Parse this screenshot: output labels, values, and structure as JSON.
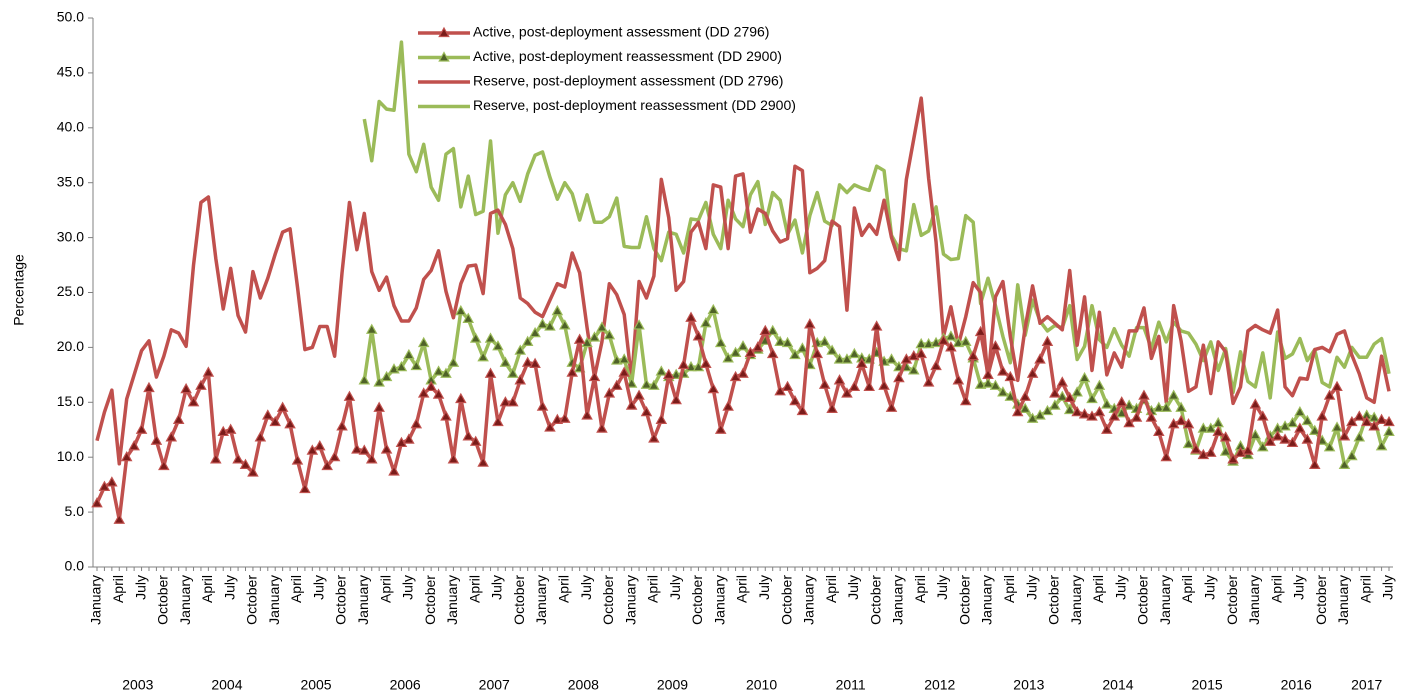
{
  "chart_data": {
    "type": "line",
    "y_label": "Percentage",
    "ylim": [
      0,
      50
    ],
    "yticks": [
      {
        "value": 0,
        "label": "0.0"
      },
      {
        "value": 5,
        "label": "5.0"
      },
      {
        "value": 10,
        "label": "10.0"
      },
      {
        "value": 15,
        "label": "15.0"
      },
      {
        "value": 20,
        "label": "20.0"
      },
      {
        "value": 25,
        "label": "25.0"
      },
      {
        "value": 30,
        "label": "30.0"
      },
      {
        "value": 35,
        "label": "35.0"
      },
      {
        "value": 40,
        "label": "40.0"
      },
      {
        "value": 45,
        "label": "45.0"
      },
      {
        "value": 50,
        "label": "50.0"
      }
    ],
    "grid": false,
    "legend": "top",
    "years": [
      "2003",
      "2004",
      "2005",
      "2006",
      "2007",
      "2008",
      "2009",
      "2010",
      "2011",
      "2012",
      "2013",
      "2014",
      "2015",
      "2016",
      "2017"
    ],
    "categories": [
      "January",
      null,
      null,
      "April",
      null,
      null,
      "July",
      null,
      null,
      "October",
      null,
      null,
      "January",
      null,
      null,
      "April",
      null,
      null,
      "July",
      null,
      null,
      "October",
      null,
      null,
      "January",
      null,
      null,
      "April",
      null,
      null,
      "July",
      null,
      null,
      "October",
      null,
      null,
      "January",
      null,
      null,
      "April",
      null,
      null,
      "July",
      null,
      null,
      "October",
      null,
      null,
      "January",
      null,
      null,
      "April",
      null,
      null,
      "July",
      null,
      null,
      "October",
      null,
      null,
      "January",
      null,
      null,
      "April",
      null,
      null,
      "July",
      null,
      null,
      "October",
      null,
      null,
      "January",
      null,
      null,
      "April",
      null,
      null,
      "July",
      null,
      null,
      "October",
      null,
      null,
      "January",
      null,
      null,
      "April",
      null,
      null,
      "July",
      null,
      null,
      "October",
      null,
      null,
      "January",
      null,
      null,
      "April",
      null,
      null,
      "July",
      null,
      null,
      "October",
      null,
      null,
      "January",
      null,
      null,
      "April",
      null,
      null,
      "July",
      null,
      null,
      "October",
      null,
      null,
      "January",
      null,
      null,
      "April",
      null,
      null,
      "July",
      null,
      null,
      "October",
      null,
      null,
      "January",
      null,
      null,
      "April",
      null,
      null,
      "July",
      null,
      null,
      "October",
      null,
      null,
      "January",
      null,
      null,
      "April",
      null,
      null,
      "July",
      null,
      null,
      "October",
      null,
      null,
      "January",
      null,
      null,
      "April",
      null,
      null,
      "July",
      null,
      null,
      "October",
      null,
      null,
      "January",
      null,
      null,
      "April",
      null,
      null,
      "July"
    ],
    "series": [
      {
        "name": "Active, post-deployment assessment (DD 2796)",
        "color": "#c0504d",
        "marker": "triangle",
        "marker_color": "#7a1c1a",
        "values": [
          5.8,
          7.3,
          7.7,
          4.3,
          10.0,
          11.0,
          12.5,
          16.3,
          11.5,
          9.2,
          11.8,
          13.4,
          16.2,
          15.0,
          16.5,
          17.7,
          9.8,
          12.3,
          12.5,
          9.8,
          9.3,
          8.6,
          11.8,
          13.8,
          13.2,
          14.5,
          13.0,
          9.7,
          7.1,
          10.6,
          11.0,
          9.2,
          10.0,
          12.8,
          15.5,
          10.7,
          10.6,
          9.8,
          14.5,
          10.7,
          8.7,
          11.3,
          11.6,
          13.0,
          15.8,
          16.4,
          15.7,
          13.7,
          9.8,
          15.3,
          11.9,
          11.4,
          9.5,
          17.6,
          13.2,
          15.0,
          15.0,
          17.0,
          18.6,
          18.5,
          14.6,
          12.7,
          13.4,
          13.5,
          17.7,
          20.7,
          13.8,
          17.3,
          12.6,
          15.8,
          16.5,
          17.7,
          14.7,
          15.6,
          14.1,
          11.7,
          13.4,
          17.5,
          15.2,
          18.4,
          22.7,
          21.0,
          18.5,
          16.2,
          12.5,
          14.6,
          17.3,
          17.6,
          19.5,
          20.0,
          21.5,
          19.4,
          16.0,
          16.4,
          15.1,
          14.2,
          22.1,
          19.4,
          16.6,
          14.4,
          17.0,
          15.8,
          16.4,
          18.5,
          16.4,
          21.9,
          16.5,
          14.5,
          17.2,
          18.9,
          19.2,
          19.4,
          16.8,
          18.3,
          20.6,
          20.0,
          17.0,
          15.1,
          19.2,
          21.4,
          17.5,
          20.1,
          17.8,
          17.3,
          14.1,
          15.5,
          17.6,
          18.9,
          20.5,
          15.8,
          16.8,
          15.4,
          14.1,
          13.9,
          13.7,
          14.1,
          12.5,
          13.7,
          15.0,
          13.1,
          13.6,
          15.6,
          13.6,
          12.3,
          10.0,
          13.0,
          13.3,
          13.0,
          10.7,
          10.2,
          10.4,
          12.3,
          11.8,
          9.8,
          10.4,
          10.6,
          14.8,
          13.7,
          11.4,
          11.9,
          11.6,
          11.3,
          12.6,
          11.6,
          9.3,
          13.7,
          15.6,
          16.4,
          11.9,
          13.2,
          13.7,
          13.2,
          12.8,
          13.4,
          13.2
        ]
      },
      {
        "name": "Active, post-deployment reassessment (DD 2900)",
        "color": "#9bbb59",
        "marker": "triangle",
        "marker_color": "#4f6228",
        "values": [
          null,
          null,
          null,
          null,
          null,
          null,
          null,
          null,
          null,
          null,
          null,
          null,
          null,
          null,
          null,
          null,
          null,
          null,
          null,
          null,
          null,
          null,
          null,
          null,
          null,
          null,
          null,
          null,
          null,
          null,
          null,
          null,
          null,
          null,
          null,
          null,
          17.0,
          21.6,
          16.8,
          17.3,
          18.0,
          18.2,
          19.3,
          18.3,
          20.4,
          17.0,
          17.8,
          17.6,
          18.6,
          23.3,
          22.6,
          20.8,
          19.1,
          20.8,
          20.1,
          18.6,
          17.6,
          19.7,
          20.5,
          21.3,
          22.1,
          21.9,
          23.3,
          22.0,
          18.6,
          18.1,
          20.4,
          20.9,
          21.8,
          21.1,
          18.8,
          18.9,
          16.7,
          22.0,
          16.6,
          16.5,
          17.8,
          17.3,
          17.5,
          17.6,
          18.2,
          18.2,
          22.2,
          23.4,
          20.4,
          19.0,
          19.5,
          20.1,
          19.3,
          19.8,
          20.6,
          21.5,
          20.5,
          20.4,
          19.3,
          19.9,
          18.4,
          20.4,
          20.5,
          19.7,
          18.9,
          18.9,
          19.4,
          19.0,
          18.9,
          19.5,
          18.7,
          18.9,
          18.2,
          18.2,
          17.9,
          20.3,
          20.3,
          20.4,
          20.8,
          21.0,
          20.4,
          20.5,
          19.0,
          16.6,
          16.7,
          16.5,
          15.9,
          15.5,
          14.8,
          14.4,
          13.5,
          13.8,
          14.2,
          14.7,
          15.5,
          14.3,
          15.9,
          17.2,
          15.3,
          16.5,
          14.8,
          14.4,
          14.0,
          14.7,
          14.4,
          15.2,
          14.2,
          14.5,
          14.5,
          15.6,
          14.5,
          11.2,
          10.6,
          12.6,
          12.6,
          13.1,
          10.5,
          9.6,
          11.0,
          10.2,
          12.0,
          10.9,
          11.9,
          12.6,
          12.8,
          13.1,
          14.1,
          13.3,
          12.4,
          11.5,
          10.9,
          12.7,
          9.3,
          10.1,
          11.8,
          13.8,
          13.6,
          11.0,
          12.3
        ]
      },
      {
        "name": "Reserve, post-deployment assessment (DD 2796)",
        "color": "#c0504d",
        "values": [
          11.5,
          14.1,
          16.1,
          9.4,
          15.3,
          17.5,
          19.7,
          20.6,
          17.3,
          19.2,
          21.6,
          21.3,
          20.1,
          27.5,
          33.2,
          33.7,
          28.1,
          23.5,
          27.2,
          22.9,
          21.4,
          26.9,
          24.5,
          26.3,
          28.5,
          30.5,
          30.8,
          25.5,
          19.8,
          20.0,
          21.9,
          21.9,
          19.2,
          26.8,
          33.2,
          28.9,
          32.2,
          26.9,
          25.2,
          26.4,
          23.8,
          22.4,
          22.4,
          23.6,
          26.2,
          27.0,
          28.8,
          25.1,
          22.7,
          25.8,
          27.4,
          27.5,
          24.9,
          32.2,
          32.5,
          31.2,
          29.0,
          24.5,
          24.0,
          23.2,
          22.8,
          24.3,
          25.8,
          25.5,
          28.6,
          26.8,
          21.8,
          17.3,
          20.5,
          25.8,
          24.8,
          23.0,
          17.0,
          26.0,
          24.5,
          26.5,
          35.3,
          31.8,
          25.2,
          26.0,
          30.5,
          31.4,
          29.0,
          34.8,
          34.6,
          29.0,
          35.6,
          35.8,
          30.5,
          32.6,
          32.2,
          30.6,
          29.6,
          29.9,
          36.5,
          36.1,
          26.8,
          27.2,
          27.9,
          31.5,
          31.0,
          23.4,
          32.7,
          30.2,
          31.2,
          30.3,
          33.4,
          30.0,
          28.0,
          35.3,
          39.0,
          42.7,
          35.4,
          29.6,
          21.0,
          23.7,
          20.2,
          22.8,
          25.9,
          25.0,
          17.0,
          24.6,
          26.0,
          21.0,
          17.0,
          21.8,
          25.6,
          22.2,
          22.8,
          22.2,
          21.6,
          27.0,
          20.2,
          24.6,
          17.9,
          23.2,
          17.5,
          19.5,
          18.2,
          21.5,
          21.5,
          23.6,
          19.0,
          21.0,
          15.0,
          23.8,
          20.6,
          16.0,
          16.4,
          20.2,
          15.8,
          20.5,
          19.6,
          14.9,
          16.4,
          21.5,
          22.0,
          21.6,
          21.3,
          23.4,
          16.4,
          15.6,
          17.2,
          17.1,
          19.8,
          20.0,
          19.6,
          21.2,
          21.5,
          19.3,
          17.6,
          15.4,
          15.0,
          19.2,
          16.0
        ]
      },
      {
        "name": "Reserve, post-deployment reassessment (DD 2900)",
        "color": "#9bbb59",
        "values": [
          null,
          null,
          null,
          null,
          null,
          null,
          null,
          null,
          null,
          null,
          null,
          null,
          null,
          null,
          null,
          null,
          null,
          null,
          null,
          null,
          null,
          null,
          null,
          null,
          null,
          null,
          null,
          null,
          null,
          null,
          null,
          null,
          null,
          null,
          null,
          null,
          40.8,
          37.0,
          42.4,
          41.7,
          41.6,
          47.8,
          37.6,
          36.0,
          38.5,
          34.6,
          33.4,
          37.6,
          38.1,
          32.8,
          35.6,
          32.1,
          32.4,
          38.8,
          30.4,
          33.9,
          35.0,
          33.3,
          35.8,
          37.5,
          37.8,
          35.5,
          33.5,
          35.0,
          34.0,
          31.6,
          33.9,
          31.4,
          31.4,
          31.9,
          33.6,
          29.2,
          29.1,
          29.1,
          31.9,
          29.0,
          27.9,
          30.5,
          30.3,
          28.6,
          31.7,
          31.6,
          33.2,
          30.3,
          29.0,
          33.4,
          31.7,
          31.0,
          33.9,
          35.1,
          31.2,
          34.1,
          33.4,
          30.3,
          31.6,
          28.6,
          32.0,
          34.1,
          31.5,
          31.1,
          34.8,
          34.1,
          34.8,
          34.5,
          34.3,
          36.5,
          36.1,
          30.2,
          29.0,
          28.8,
          33.0,
          30.2,
          30.6,
          32.8,
          28.5,
          28.0,
          28.1,
          32.0,
          31.4,
          24.0,
          26.3,
          23.8,
          21.0,
          18.6,
          25.7,
          21.1,
          24.3,
          22.4,
          21.5,
          22.0,
          21.8,
          23.8,
          18.9,
          20.1,
          23.8,
          20.7,
          20.0,
          21.7,
          20.2,
          19.2,
          21.8,
          21.8,
          19.9,
          22.3,
          20.5,
          22.3,
          21.5,
          21.3,
          20.3,
          18.8,
          20.5,
          17.9,
          19.9,
          15.9,
          19.6,
          16.9,
          16.4,
          19.5,
          15.4,
          21.4,
          19.0,
          19.4,
          20.8,
          18.8,
          19.8,
          16.8,
          16.4,
          19.1,
          18.2,
          20.0,
          19.1,
          19.1,
          20.3,
          20.8,
          17.6
        ]
      }
    ]
  }
}
